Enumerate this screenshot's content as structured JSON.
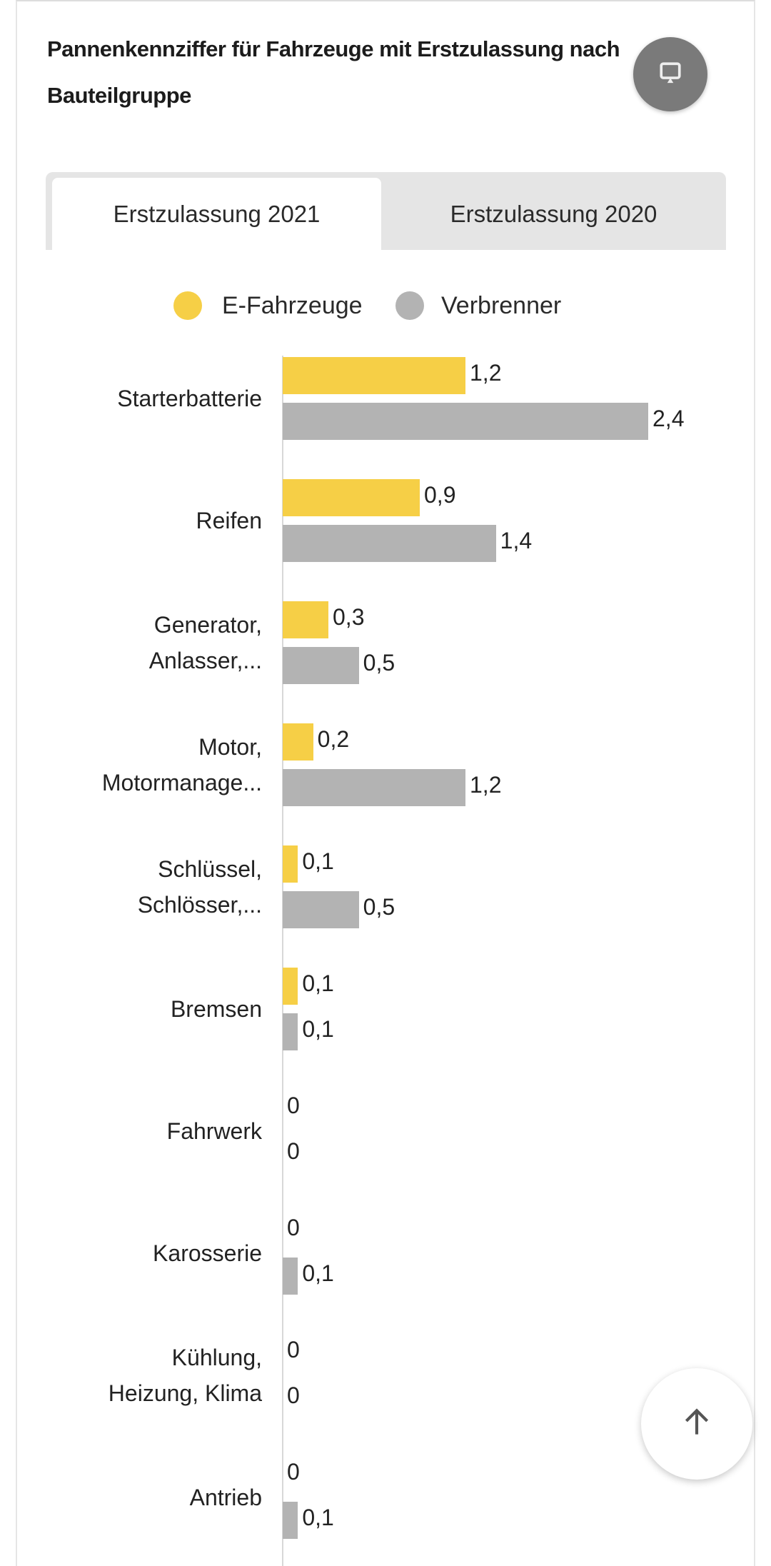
{
  "header": {
    "title": "Pannenkennziffer für Fahrzeuge mit Erstzulassung nach Bauteilgruppe"
  },
  "icons": {
    "present": "presentation-screen-icon",
    "scroll_top": "arrow-up-icon"
  },
  "tabs": [
    {
      "label": "Erstzulassung 2021",
      "active": true
    },
    {
      "label": "Erstzulassung 2020",
      "active": false
    }
  ],
  "chart_data": {
    "type": "bar",
    "orientation": "horizontal",
    "title": "Pannenkennziffer für Fahrzeuge mit Erstzulassung nach Bauteilgruppe",
    "legend_position": "top",
    "categories": [
      [
        "Starterbatterie"
      ],
      [
        "Reifen"
      ],
      [
        "Generator,",
        "Anlasser,..."
      ],
      [
        "Motor,",
        "Motormanage..."
      ],
      [
        "Schlüssel,",
        "Schlösser,..."
      ],
      [
        "Bremsen"
      ],
      [
        "Fahrwerk"
      ],
      [
        "Karosserie"
      ],
      [
        "Kühlung,",
        "Heizung, Klima"
      ],
      [
        "Antrieb"
      ]
    ],
    "series": [
      {
        "name": "E-Fahrzeuge",
        "color": "#f6cf46",
        "values": [
          1.2,
          0.9,
          0.3,
          0.2,
          0.1,
          0.1,
          0,
          0,
          0,
          0
        ],
        "labels": [
          "1,2",
          "0,9",
          "0,3",
          "0,2",
          "0,1",
          "0,1",
          "0",
          "0",
          "0",
          "0"
        ]
      },
      {
        "name": "Verbrenner",
        "color": "#b3b3b3",
        "values": [
          2.4,
          1.4,
          0.5,
          1.2,
          0.5,
          0.1,
          0,
          0.1,
          0,
          0.1
        ],
        "labels": [
          "2,4",
          "1,4",
          "0,5",
          "1,2",
          "0,5",
          "0,1",
          "0",
          "0,1",
          "0",
          "0,1"
        ]
      }
    ],
    "xlim": [
      0,
      2.4
    ],
    "grid": false
  }
}
